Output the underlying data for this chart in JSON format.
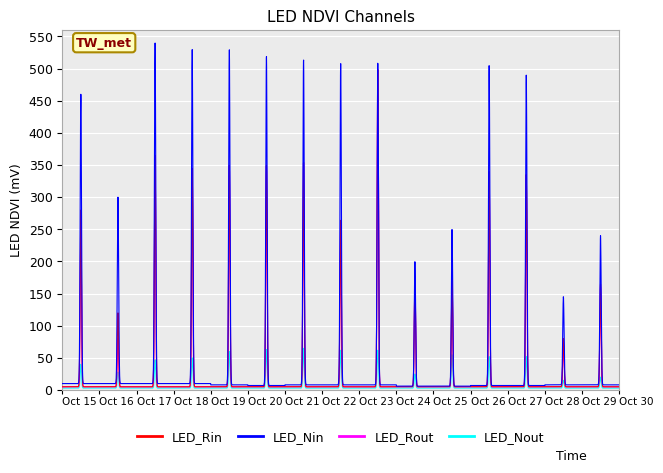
{
  "title": "LED NDVI Channels",
  "xlabel": "Time",
  "ylabel": "LED NDVI (mV)",
  "ylim": [
    0,
    560
  ],
  "yticks": [
    0,
    50,
    100,
    150,
    200,
    250,
    300,
    350,
    400,
    450,
    500,
    550
  ],
  "annotation_text": "TW_met",
  "annotation_bg": "#FFFFC0",
  "annotation_border": "#AA8800",
  "bg_color": "#EBEBEB",
  "legend": [
    {
      "label": "LED_Rin",
      "color": "#FF0000"
    },
    {
      "label": "LED_Nin",
      "color": "#0000FF"
    },
    {
      "label": "LED_Rout",
      "color": "#FF00FF"
    },
    {
      "label": "LED_Nout",
      "color": "#00FFFF"
    }
  ],
  "x_tick_labels": [
    "Oct 15",
    "Oct 16",
    "Oct 17",
    "Oct 18",
    "Oct 19",
    "Oct 20",
    "Oct 21",
    "Oct 22",
    "Oct 23",
    "Oct 24",
    "Oct 25",
    "Oct 26",
    "Oct 27",
    "Oct 28",
    "Oct 29",
    "Oct 30"
  ],
  "spike_days": [
    15,
    16,
    17,
    18,
    19,
    20,
    21,
    22,
    23,
    24,
    25,
    26,
    27,
    28,
    29
  ],
  "nin_peaks": [
    460,
    300,
    540,
    530,
    530,
    520,
    515,
    510,
    510,
    200,
    250,
    505,
    490,
    145,
    240
  ],
  "rin_peaks": [
    280,
    120,
    365,
    345,
    350,
    350,
    355,
    265,
    500,
    170,
    175,
    340,
    335,
    80,
    165
  ],
  "rout_peaks": [
    250,
    80,
    365,
    345,
    350,
    350,
    355,
    265,
    500,
    165,
    170,
    335,
    335,
    75,
    160
  ],
  "nout_peaks": [
    40,
    28,
    47,
    50,
    60,
    63,
    65,
    62,
    62,
    25,
    55,
    52,
    52,
    15,
    20
  ],
  "base_nin": [
    10,
    10,
    10,
    10,
    8,
    7,
    8,
    8,
    8,
    6,
    6,
    7,
    7,
    8,
    8
  ],
  "base_rin": [
    5,
    5,
    5,
    5,
    5,
    5,
    5,
    5,
    5,
    5,
    5,
    5,
    5,
    5,
    5
  ],
  "base_rout": [
    5,
    5,
    5,
    5,
    5,
    5,
    5,
    5,
    5,
    5,
    5,
    5,
    5,
    5,
    5
  ],
  "base_nout": [
    3,
    3,
    3,
    3,
    3,
    3,
    3,
    3,
    3,
    3,
    3,
    3,
    3,
    3,
    3
  ]
}
